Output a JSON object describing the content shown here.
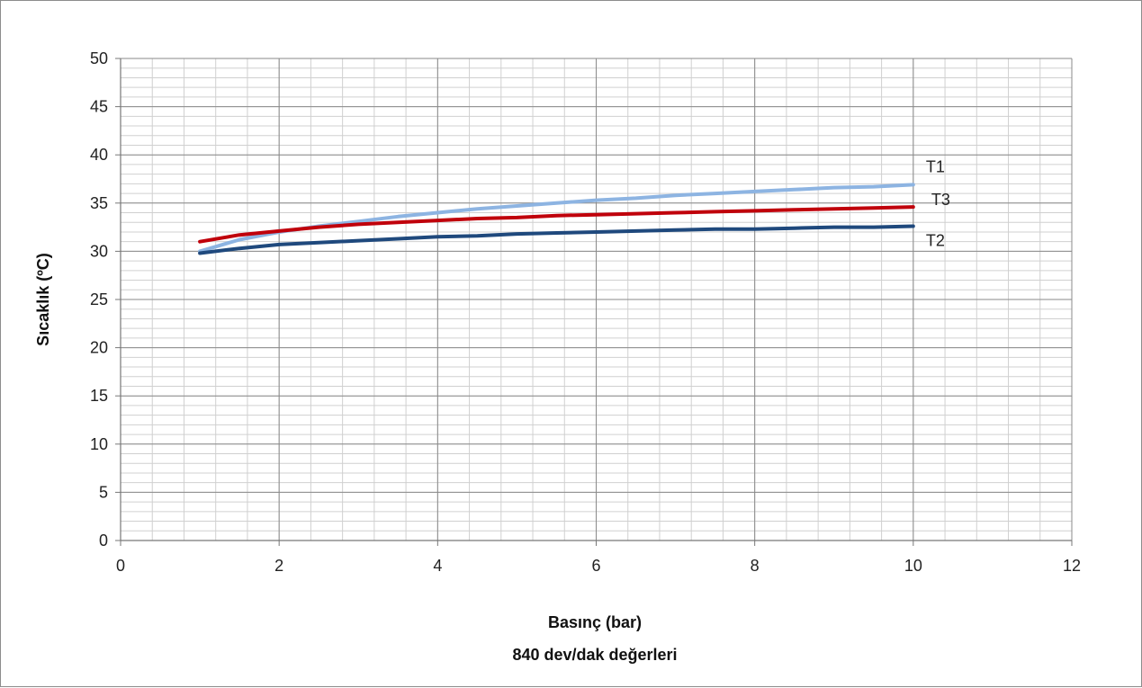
{
  "chart_data": {
    "type": "line",
    "xlabel": "Basınç (bar)",
    "subtitle": "840 dev/dak değerleri",
    "ylabel": "Sıcaklık (ºC)",
    "xlim": [
      0,
      12
    ],
    "ylim": [
      0,
      50
    ],
    "x_ticks": [
      0,
      2,
      4,
      6,
      8,
      10,
      12
    ],
    "y_ticks": [
      0,
      5,
      10,
      15,
      20,
      25,
      30,
      35,
      40,
      45,
      50
    ],
    "grid": true,
    "legend": "inline-labels-right",
    "series": [
      {
        "name": "T1",
        "color": "#8db4e2",
        "x": [
          1,
          1.5,
          2,
          2.5,
          3,
          3.5,
          4,
          4.5,
          5,
          5.5,
          6,
          6.5,
          7,
          7.5,
          8,
          8.5,
          9,
          9.5,
          10
        ],
        "values": [
          30.0,
          31.2,
          32.0,
          32.6,
          33.1,
          33.6,
          34.0,
          34.4,
          34.7,
          35.0,
          35.3,
          35.5,
          35.8,
          36.0,
          36.2,
          36.4,
          36.6,
          36.7,
          36.9
        ]
      },
      {
        "name": "T3",
        "color": "#c0000b",
        "x": [
          1,
          1.5,
          2,
          2.5,
          3,
          3.5,
          4,
          4.5,
          5,
          5.5,
          6,
          6.5,
          7,
          7.5,
          8,
          8.5,
          9,
          9.5,
          10
        ],
        "values": [
          31.0,
          31.7,
          32.1,
          32.5,
          32.8,
          33.0,
          33.2,
          33.4,
          33.5,
          33.7,
          33.8,
          33.9,
          34.0,
          34.1,
          34.2,
          34.3,
          34.4,
          34.5,
          34.6
        ]
      },
      {
        "name": "T2",
        "color": "#1f497d",
        "x": [
          1,
          1.5,
          2,
          2.5,
          3,
          3.5,
          4,
          4.5,
          5,
          5.5,
          6,
          6.5,
          7,
          7.5,
          8,
          8.5,
          9,
          9.5,
          10
        ],
        "values": [
          29.8,
          30.3,
          30.7,
          30.9,
          31.1,
          31.3,
          31.5,
          31.6,
          31.8,
          31.9,
          32.0,
          32.1,
          32.2,
          32.3,
          32.3,
          32.4,
          32.5,
          32.5,
          32.6
        ]
      }
    ]
  }
}
